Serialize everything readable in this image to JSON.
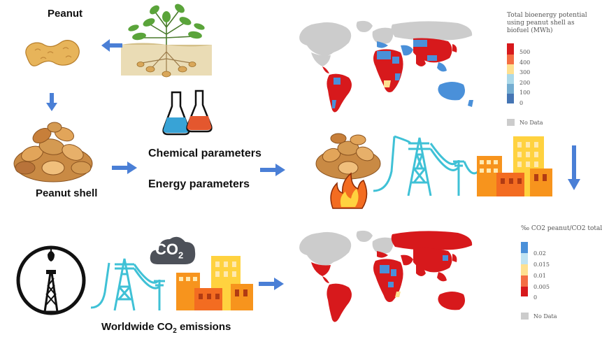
{
  "labels": {
    "peanut": "Peanut",
    "peanut_shell": "Peanut shell",
    "chemical_parameters": "Chemical parameters",
    "energy_parameters": "Energy parameters",
    "worldwide_emissions_prefix": "Worldwide CO",
    "worldwide_emissions_sub": "2",
    "worldwide_emissions_suffix": " emissions",
    "co2_cloud_main": "CO",
    "co2_cloud_sub": "2"
  },
  "legend_top": {
    "title_line1": "Total bioenergy potential",
    "title_line2": "using peanut shell as",
    "title_line3": "biofuel (MWh)",
    "ticks": [
      "500",
      "400",
      "300",
      "200",
      "100",
      "0"
    ],
    "colors": [
      "#d7191c",
      "#f46d43",
      "#fee090",
      "#abd9e9",
      "#74add1",
      "#4575b4"
    ],
    "no_data": "No Data",
    "no_data_color": "#cccccc"
  },
  "legend_bottom": {
    "title": "‰ CO2 peanut/CO2 total",
    "ticks": [
      "0.02",
      "0.015",
      "0.01",
      "0.005",
      "0"
    ],
    "colors": [
      "#4a90d9",
      "#bfe3f2",
      "#fee090",
      "#f46d43",
      "#d7191c"
    ],
    "no_data": "No Data",
    "no_data_color": "#cccccc"
  },
  "colors": {
    "arrow": "#4a7fd6",
    "map_red": "#d7191c",
    "map_blue": "#4a90d9",
    "map_gray": "#cccccc",
    "map_yellow": "#fee090",
    "tower": "#3fc1d6",
    "building_orange": "#f7941d",
    "building_yellow": "#ffd23f"
  }
}
